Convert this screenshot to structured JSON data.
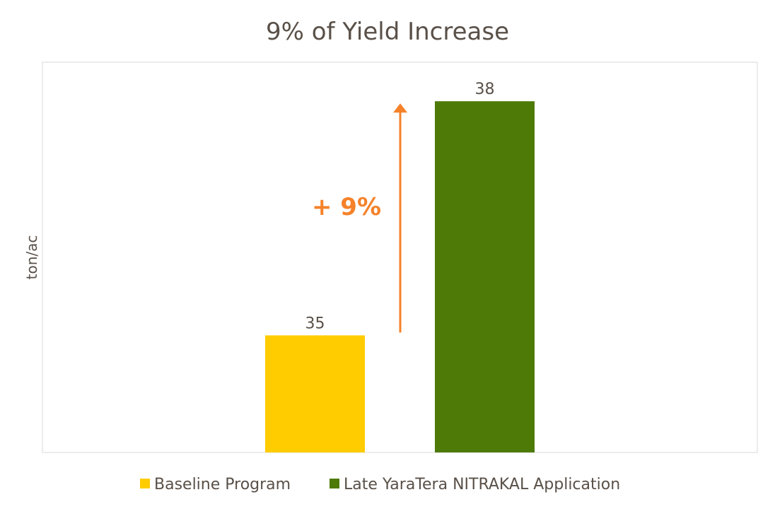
{
  "chart_data": {
    "type": "bar",
    "title": "9% of Yield Increase",
    "ylabel": "ton/ac",
    "xlabel": "",
    "ylim": [
      33.5,
      38.5
    ],
    "grid": false,
    "legend_position": "bottom",
    "series": [
      {
        "name": "Baseline Program",
        "values": [
          35
        ],
        "color": "#FFCC00"
      },
      {
        "name": "Late YaraTera NITRAKAL Application",
        "values": [
          38
        ],
        "color": "#4E7A08"
      }
    ],
    "data_labels": [
      "35",
      "38"
    ],
    "annotation": {
      "text": "+ 9%",
      "color": "#F5822A",
      "from_value": 35,
      "to_value": 38
    }
  }
}
